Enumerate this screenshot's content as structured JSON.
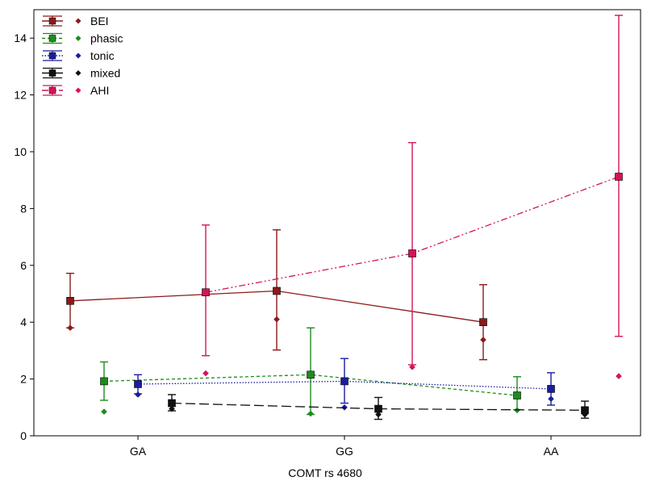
{
  "chart_data": {
    "type": "line",
    "xlabel": "COMT rs 4680",
    "ylabel": "",
    "categories": [
      "GA",
      "GG",
      "AA"
    ],
    "ylim": [
      0,
      15
    ],
    "yticks": [
      0,
      2,
      4,
      6,
      8,
      10,
      12,
      14
    ],
    "grid": false,
    "legend_position": "top-left",
    "series": [
      {
        "name": "BEI",
        "color": "#8b1a1a",
        "line_style": "solid",
        "marker": "square",
        "offset": -1,
        "mean": [
          4.75,
          5.1,
          4.0
        ],
        "upper": [
          5.72,
          7.25,
          5.32
        ],
        "lower": [
          3.8,
          3.02,
          2.68
        ],
        "median": [
          3.8,
          4.1,
          3.38
        ]
      },
      {
        "name": "phasic",
        "color": "#1e8b1e",
        "line_style": "dashed",
        "marker": "square",
        "offset": -0.5,
        "mean": [
          1.92,
          2.15,
          1.42
        ],
        "upper": [
          2.6,
          3.8,
          2.08
        ],
        "lower": [
          1.25,
          0.75,
          0.92
        ],
        "median": [
          0.85,
          0.78,
          0.9
        ]
      },
      {
        "name": "tonic",
        "color": "#1c1ca0",
        "line_style": "dotted",
        "marker": "square",
        "offset": 0,
        "mean": [
          1.82,
          1.92,
          1.65
        ],
        "upper": [
          2.15,
          2.72,
          2.22
        ],
        "lower": [
          1.48,
          1.15,
          1.08
        ],
        "median": [
          1.45,
          1.0,
          1.3
        ]
      },
      {
        "name": "mixed",
        "color": "#111111",
        "line_style": "longdash",
        "marker": "square",
        "offset": 0.5,
        "mean": [
          1.15,
          0.95,
          0.9
        ],
        "upper": [
          1.45,
          1.35,
          1.22
        ],
        "lower": [
          0.88,
          0.58,
          0.62
        ],
        "median": [
          0.95,
          0.75,
          0.75
        ]
      },
      {
        "name": "AHI",
        "color": "#d4145a",
        "line_style": "dashdotdot",
        "marker": "square",
        "offset": 1,
        "mean": [
          5.05,
          6.42,
          9.12
        ],
        "upper": [
          7.42,
          10.32,
          14.8
        ],
        "lower": [
          2.82,
          2.5,
          3.5
        ],
        "median": [
          2.2,
          2.42,
          2.1
        ]
      }
    ]
  }
}
